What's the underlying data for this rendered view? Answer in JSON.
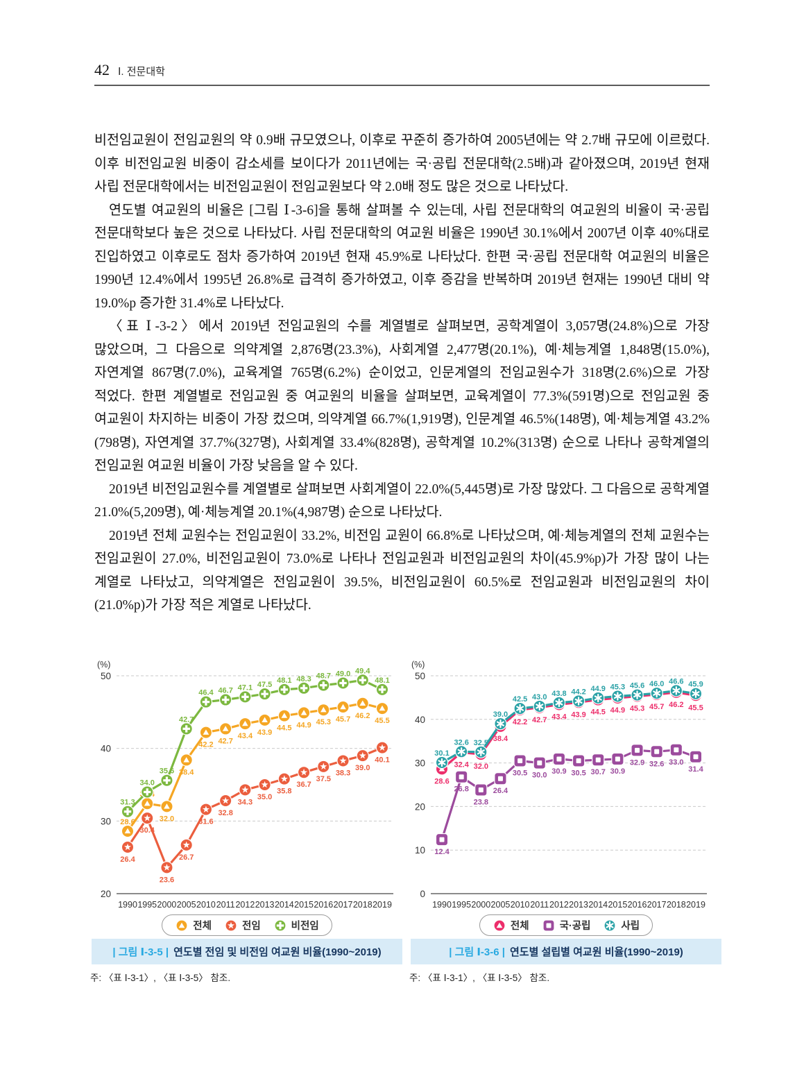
{
  "page": {
    "number": "42",
    "section": "Ⅰ. 전문대학"
  },
  "body": {
    "paragraphs": [
      "비전임교원이 전임교원의 약 0.9배 규모였으나, 이후로 꾸준히 증가하여 2005년에는 약 2.7배 규모에 이르렀다. 이후 비전임교원 비중이 감소세를 보이다가 2011년에는 국·공립 전문대학(2.5배)과 같아졌으며, 2019년 현재 사립 전문대학에서는 비전임교원이 전임교원보다 약 2.0배 정도 많은 것으로 나타났다.",
      "연도별 여교원의 비율은 [그림 Ⅰ-3-6]을 통해 살펴볼 수 있는데, 사립 전문대학의 여교원의 비율이 국·공립 전문대학보다 높은 것으로 나타났다. 사립 전문대학의 여교원 비율은 1990년 30.1%에서 2007년 이후 40%대로 진입하였고 이후로도 점차 증가하여 2019년 현재 45.9%로 나타났다. 한편 국·공립 전문대학 여교원의 비율은 1990년 12.4%에서 1995년 26.8%로 급격히 증가하였고, 이후 증감을 반복하며 2019년 현재는 1990년 대비 약 19.0%p 증가한 31.4%로 나타났다.",
      "〈표 Ⅰ-3-2〉에서 2019년 전임교원의 수를 계열별로 살펴보면, 공학계열이 3,057명(24.8%)으로 가장 많았으며, 그 다음으로 의약계열 2,876명(23.3%), 사회계열 2,477명(20.1%), 예·체능계열 1,848명(15.0%), 자연계열 867명(7.0%), 교육계열 765명(6.2%) 순이었고, 인문계열의 전임교원수가 318명(2.6%)으로 가장 적었다. 한편 계열별로 전임교원 중 여교원의 비율을 살펴보면, 교육계열이 77.3%(591명)으로 전임교원 중 여교원이 차지하는 비중이 가장 컸으며, 의약계열 66.7%(1,919명), 인문계열 46.5%(148명), 예·체능계열 43.2%(798명), 자연계열 37.7%(327명), 사회계열 33.4%(828명), 공학계열 10.2%(313명) 순으로 나타나 공학계열의 전임교원 여교원 비율이 가장 낮음을 알 수 있다.",
      "2019년 비전임교원수를 계열별로 살펴보면 사회계열이 22.0%(5,445명)로 가장 많았다. 그 다음으로 공학계열 21.0%(5,209명), 예·체능계열 20.1%(4,987명) 순으로 나타났다.",
      "2019년 전체 교원수는 전임교원이 33.2%, 비전임 교원이 66.8%로 나타났으며, 예·체능계열의 전체 교원수는 전임교원이 27.0%, 비전임교원이 73.0%로 나타나 전임교원과 비전임교원의 차이(45.9%p)가 가장 많이 나는 계열로 나타났고, 의약계열은 전임교원이 39.5%, 비전임교원이 60.5%로 전임교원과 비전임교원의 차이(21.0%p)가 가장 적은 계열로 나타났다."
    ]
  },
  "figures": [
    {
      "caption_tag": "| 그림 Ⅰ-3-5 |",
      "caption_title": "연도별 전임 및 비전임 여교원 비율(1990~2019)",
      "note": "주: 〈표 Ⅰ-3-1〉, 〈표 Ⅰ-3-5〉 참조."
    },
    {
      "caption_tag": "| 그림 Ⅰ-3-6 |",
      "caption_title": "연도별 설립별 여교원 비율(1990~2019)",
      "note": "주: 〈표 Ⅰ-3-1〉, 〈표 Ⅰ-3-5〉 참조."
    }
  ],
  "accent_colors": {
    "caption_bar_bg": "#d8ebf7",
    "caption_tag": "#29a9e1",
    "caption_title": "#16355e"
  },
  "chart_data": [
    {
      "type": "line",
      "title": "연도별 전임 및 비전임 여교원 비율(1990~2019)",
      "unit_label": "(%)",
      "categories": [
        "1990",
        "1995",
        "2000",
        "2005",
        "2010",
        "2011",
        "2012",
        "2013",
        "2014",
        "2015",
        "2016",
        "2017",
        "2018",
        "2019"
      ],
      "ylim": [
        20,
        50
      ],
      "yticks": [
        20,
        30,
        40,
        50
      ],
      "grid": true,
      "legend_position": "bottom",
      "series": [
        {
          "name": "전체",
          "color": "#F5A623",
          "marker": "triangle",
          "values": [
            28.6,
            32.4,
            32.0,
            38.4,
            42.2,
            42.7,
            43.4,
            43.9,
            44.5,
            44.9,
            45.3,
            45.7,
            46.2,
            45.5
          ]
        },
        {
          "name": "전임",
          "color": "#EB5E3E",
          "marker": "star",
          "values": [
            26.4,
            30.4,
            23.6,
            26.7,
            31.6,
            32.8,
            34.3,
            35.0,
            35.8,
            36.7,
            37.5,
            38.3,
            39.0,
            40.1
          ]
        },
        {
          "name": "비전임",
          "color": "#7CB83F",
          "marker": "plus",
          "values": [
            31.3,
            34.0,
            35.6,
            42.7,
            46.4,
            46.7,
            47.1,
            47.5,
            48.1,
            48.3,
            48.7,
            49.0,
            49.4,
            48.1
          ]
        }
      ]
    },
    {
      "type": "line",
      "title": "연도별 설립별 여교원 비율(1990~2019)",
      "unit_label": "(%)",
      "categories": [
        "1990",
        "1995",
        "2000",
        "2005",
        "2010",
        "2011",
        "2012",
        "2013",
        "2014",
        "2015",
        "2016",
        "2017",
        "2018",
        "2019"
      ],
      "ylim": [
        0,
        50
      ],
      "yticks": [
        0,
        10,
        20,
        30,
        40,
        50
      ],
      "grid": true,
      "legend_position": "bottom",
      "series": [
        {
          "name": "전체",
          "color": "#ED2E6B",
          "marker": "triangle",
          "values": [
            28.6,
            32.4,
            32.0,
            38.4,
            42.2,
            42.7,
            43.4,
            43.9,
            44.5,
            44.9,
            45.3,
            45.7,
            46.2,
            45.5
          ]
        },
        {
          "name": "국·공립",
          "color": "#9C4B9D",
          "marker": "square",
          "values": [
            12.4,
            26.8,
            23.8,
            26.4,
            30.5,
            30.0,
            30.9,
            30.5,
            30.7,
            30.9,
            32.9,
            32.6,
            33.0,
            31.4
          ]
        },
        {
          "name": "사립",
          "color": "#2AA1A6",
          "marker": "asterisk",
          "values": [
            30.1,
            32.6,
            32.5,
            39.0,
            42.5,
            43.0,
            43.8,
            44.2,
            44.9,
            45.3,
            45.6,
            46.0,
            46.6,
            45.9
          ]
        }
      ]
    }
  ]
}
